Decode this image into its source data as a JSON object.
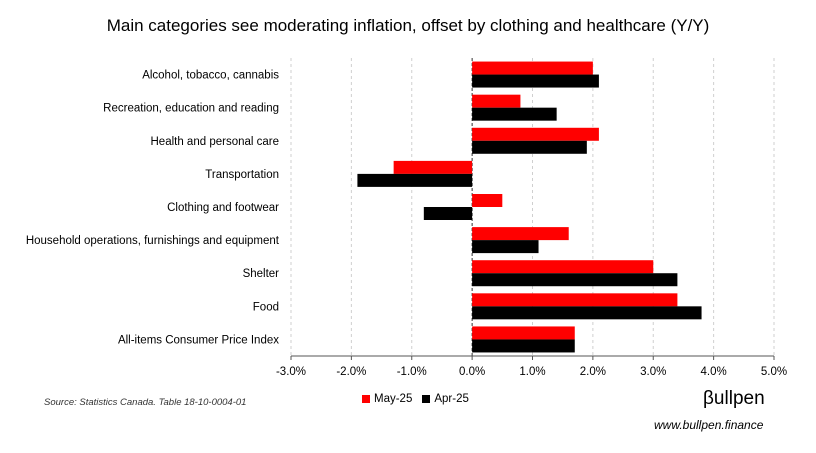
{
  "chart_data": {
    "type": "bar",
    "orientation": "horizontal",
    "title": "Main categories see moderating inflation, offset by clothing and healthcare (Y/Y)",
    "categories": [
      "Alcohol, tobacco, cannabis",
      "Recreation, education and reading",
      "Health and personal care",
      "Transportation",
      "Clothing and footwear",
      "Household operations, furnishings and equipment",
      "Shelter",
      "Food",
      "All-items Consumer Price Index"
    ],
    "series": [
      {
        "name": "May-25",
        "color": "#ff0000",
        "values": [
          2.0,
          0.8,
          2.1,
          -1.3,
          0.5,
          1.6,
          3.0,
          3.4,
          1.7
        ]
      },
      {
        "name": "Apr-25",
        "color": "#000000",
        "values": [
          2.1,
          1.4,
          1.9,
          -1.9,
          -0.8,
          1.1,
          3.4,
          3.8,
          1.7
        ]
      }
    ],
    "xlim": [
      -3.0,
      5.0
    ],
    "xticks": [
      "-3.0%",
      "-2.0%",
      "-1.0%",
      "0.0%",
      "1.0%",
      "2.0%",
      "3.0%",
      "4.0%",
      "5.0%"
    ],
    "xlabel": "",
    "ylabel": "",
    "grid": "vertical dashed",
    "legend_position": "bottom"
  },
  "footer": {
    "source": "Source: Statistics Canada. Table 18-10-0004-01",
    "brand": "βullpen",
    "url": "www.bullpen.finance"
  }
}
